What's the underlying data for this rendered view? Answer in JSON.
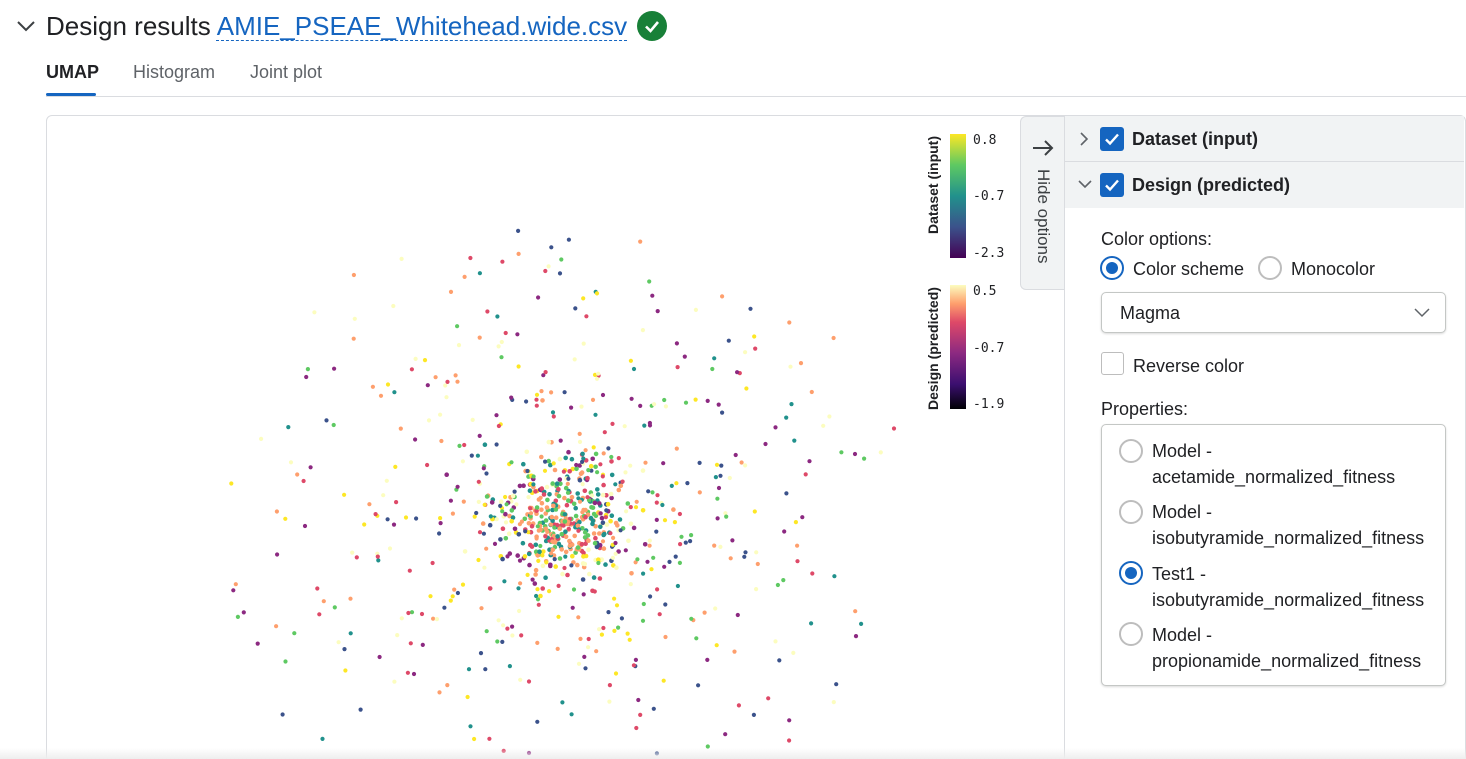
{
  "header": {
    "title": "Design results",
    "file_name": "AMIE_PSEAE_Whitehead.wide.csv",
    "status_icon": "check-circle-icon",
    "status_color": "#188038"
  },
  "tabs": [
    {
      "label": "UMAP",
      "active": true
    },
    {
      "label": "Histogram",
      "active": false
    },
    {
      "label": "Joint plot",
      "active": false
    }
  ],
  "hide_options_label": "Hide options",
  "sidebar": {
    "layers": [
      {
        "label": "Dataset (input)",
        "checked": true,
        "expanded": false
      },
      {
        "label": "Design (predicted)",
        "checked": true,
        "expanded": true
      }
    ],
    "color_options_label": "Color options:",
    "color_modes": [
      {
        "label": "Color scheme",
        "selected": true
      },
      {
        "label": "Monocolor",
        "selected": false
      }
    ],
    "scheme_select": {
      "value": "Magma"
    },
    "reverse_color": {
      "label": "Reverse color",
      "checked": false
    },
    "properties_label": "Properties:",
    "properties": [
      {
        "line1": "Model -",
        "line2": "acetamide_normalized_fitness",
        "selected": false
      },
      {
        "line1": "Model -",
        "line2": "isobutyramide_normalized_fitness",
        "selected": false
      },
      {
        "line1": "Test1 -",
        "line2": "isobutyramide_normalized_fitness",
        "selected": true
      },
      {
        "line1": "Model -",
        "line2": "propionamide_normalized_fitness",
        "selected": false
      }
    ]
  },
  "chart_data": {
    "type": "scatter",
    "xlabel": "",
    "ylabel": "",
    "color_scales": [
      {
        "name": "Dataset (input)",
        "palette": "viridis",
        "ticks": [
          "0.8",
          "-0.7",
          "-2.3"
        ]
      },
      {
        "name": "Design (predicted)",
        "palette": "magma",
        "ticks": [
          "0.5",
          "-0.7",
          "-1.9"
        ]
      }
    ],
    "note_points": "Approximately 900 unlabeled points clustered around a dense center; coordinates not labeled."
  },
  "colors": {
    "accent": "#1565c0",
    "viridis": [
      "#440154",
      "#3b528b",
      "#21918c",
      "#5ec962",
      "#fde725"
    ],
    "magma": [
      "#000004",
      "#3b0f70",
      "#8c2981",
      "#de4968",
      "#fe9f6d",
      "#fcfdbf"
    ]
  }
}
